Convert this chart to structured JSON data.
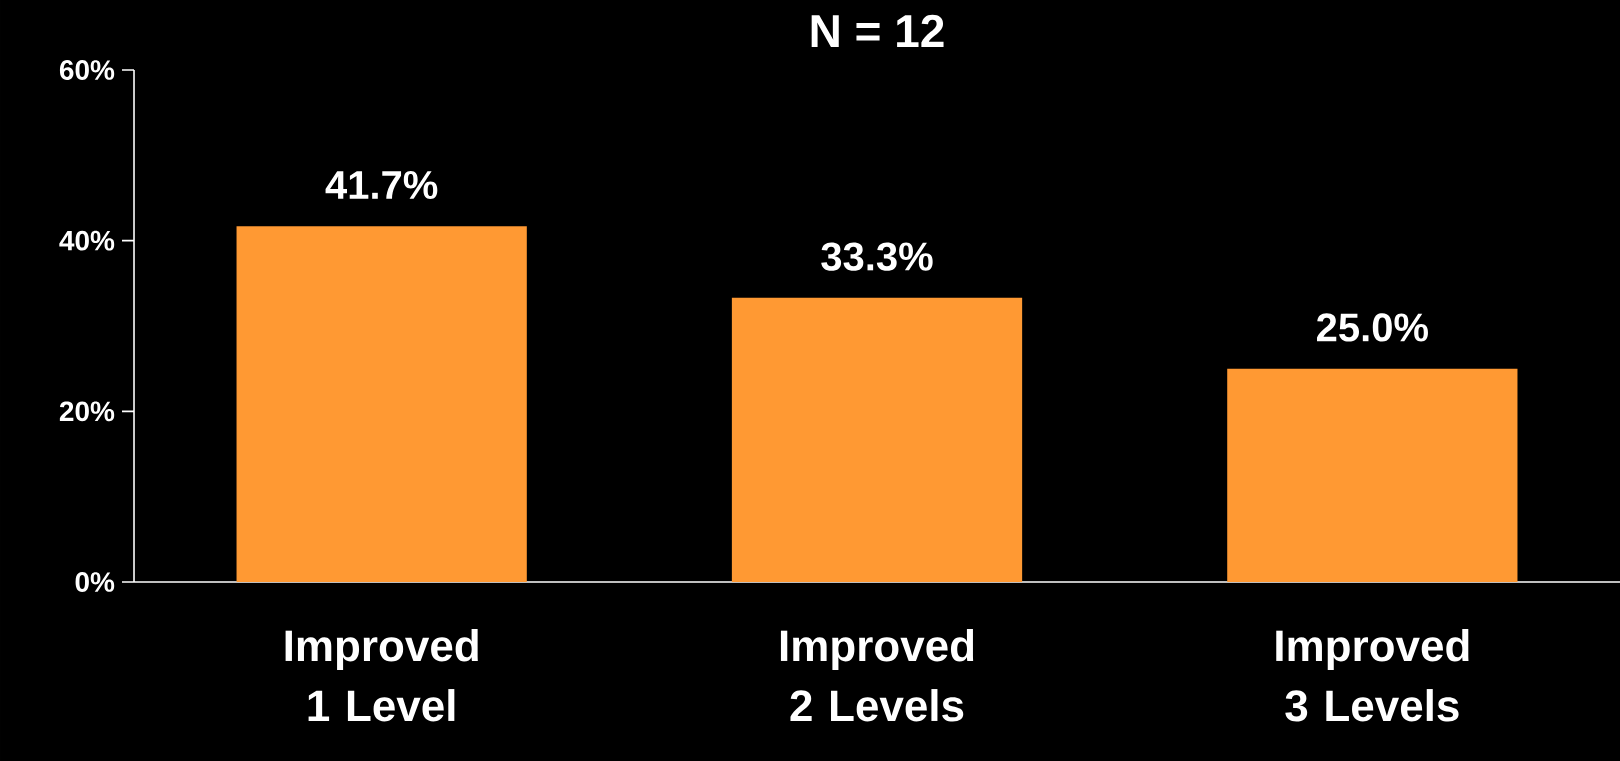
{
  "chart_data": {
    "type": "bar",
    "title": "N = 12",
    "categories": [
      "Improved 1 Level",
      "Improved 2 Levels",
      "Improved 3 Levels"
    ],
    "values": [
      41.7,
      33.3,
      25.0
    ],
    "value_labels": [
      "41.7%",
      "33.3%",
      "25.0%"
    ],
    "color": "#ff9933",
    "ylim": [
      0,
      60
    ],
    "yticks": [
      {
        "value": 0,
        "label": "0%"
      },
      {
        "value": 20,
        "label": "20%"
      },
      {
        "value": 40,
        "label": "40%"
      },
      {
        "value": 60,
        "label": "60%"
      }
    ]
  }
}
